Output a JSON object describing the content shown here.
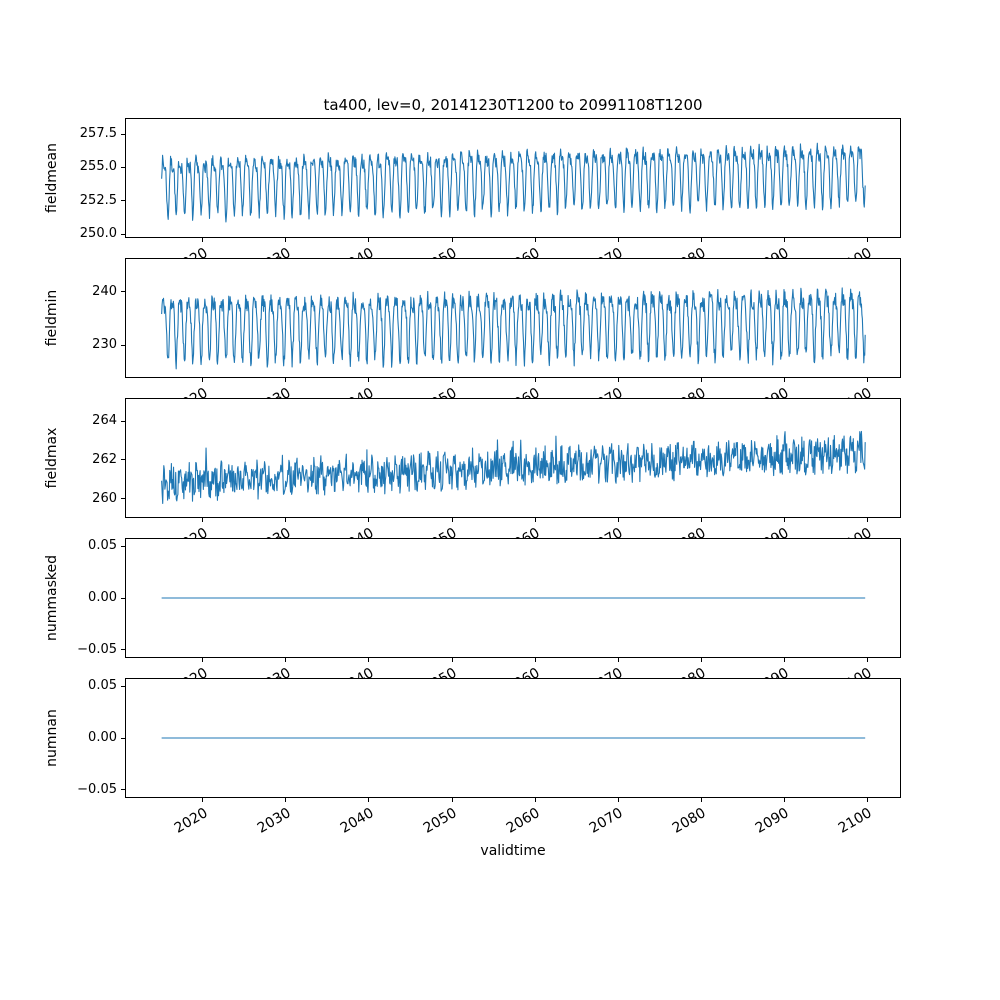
{
  "figure": {
    "background": "#ffffff",
    "line_color": "#1f77b4"
  },
  "chart_data": {
    "type": "line",
    "title": "ta400, lev=0, 20141230T1200 to 20991108T1200",
    "xlabel": "validtime",
    "grid": false,
    "legend": false,
    "xlim": [
      2010.7,
      2104.1
    ],
    "x_data_range": [
      2015.0,
      2099.9
    ],
    "xticks": [
      2020,
      2030,
      2040,
      2050,
      2060,
      2070,
      2080,
      2090,
      2100
    ],
    "xtick_labels": [
      "2020",
      "2030",
      "2040",
      "2050",
      "2060",
      "2070",
      "2080",
      "2090",
      "2100"
    ],
    "subplots": [
      {
        "ylabel": "fieldmean",
        "ylim": [
          249.7,
          258.7
        ],
        "yticks": [
          250.0,
          252.5,
          255.0,
          257.5
        ],
        "ytick_labels": [
          "250.0",
          "252.5",
          "255.0",
          "257.5"
        ],
        "observed_range": [
          250.1,
          258.3
        ],
        "series": {
          "name": "fieldmean",
          "pattern": "dense annual oscillation with slight upward trend",
          "base": 253.9,
          "trend": 1.0,
          "amplitude": 1.9,
          "second_harmonic": 0.4,
          "noise": 0.5,
          "spikes": 0,
          "points": 1500,
          "seed": 7
        }
      },
      {
        "ylabel": "fieldmin",
        "ylim": [
          223.8,
          246.4
        ],
        "yticks": [
          230,
          240
        ],
        "ytick_labels": [
          "230",
          "240"
        ],
        "observed_range": [
          225.5,
          245.5
        ],
        "series": {
          "name": "fieldmin",
          "pattern": "dense annual oscillation with slight upward trend",
          "base": 234.0,
          "trend": 1.0,
          "amplitude": 5.4,
          "second_harmonic": 0.35,
          "noise": 1.6,
          "spikes": 0,
          "points": 1500,
          "seed": 11
        }
      },
      {
        "ylabel": "fieldmax",
        "ylim": [
          259.0,
          265.2
        ],
        "yticks": [
          260,
          262,
          264
        ],
        "ytick_labels": [
          "260",
          "262",
          "264"
        ],
        "observed_range": [
          259.5,
          264.6
        ],
        "series": {
          "name": "fieldmax",
          "pattern": "noisy series rising from about 260.7 to about 262.4",
          "base": 260.8,
          "trend": 1.6,
          "amplitude": 0.3,
          "second_harmonic": 0,
          "noise": 0.8,
          "spikes": 2.2,
          "points": 1300,
          "seed": 13
        }
      },
      {
        "ylabel": "nummasked",
        "ylim": [
          -0.0577,
          0.0577
        ],
        "yticks": [
          -0.05,
          0.0,
          0.05
        ],
        "ytick_labels": [
          "−0.05",
          "0.00",
          "0.05"
        ],
        "observed_range": [
          0,
          0
        ],
        "series": {
          "name": "nummasked",
          "pattern": "constant zero",
          "base": 0,
          "trend": 0,
          "amplitude": 0,
          "second_harmonic": 0,
          "noise": 0,
          "spikes": 0,
          "points": 60,
          "seed": 1
        }
      },
      {
        "ylabel": "numnan",
        "ylim": [
          -0.0577,
          0.0577
        ],
        "yticks": [
          -0.05,
          0.0,
          0.05
        ],
        "ytick_labels": [
          "−0.05",
          "0.00",
          "0.05"
        ],
        "observed_range": [
          0,
          0
        ],
        "series": {
          "name": "numnan",
          "pattern": "constant zero",
          "base": 0,
          "trend": 0,
          "amplitude": 0,
          "second_harmonic": 0,
          "noise": 0,
          "spikes": 0,
          "points": 60,
          "seed": 2
        }
      }
    ]
  }
}
